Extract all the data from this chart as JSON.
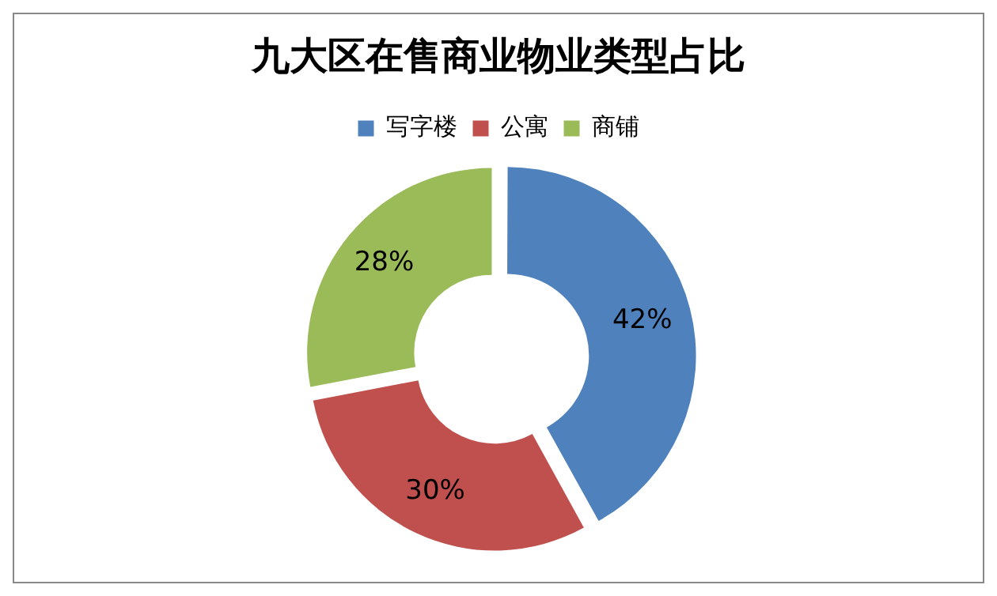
{
  "chart_data": {
    "type": "donut",
    "title": "九大区在售商业物业类型占比",
    "categories": [
      "写字楼",
      "公寓",
      "商铺"
    ],
    "values": [
      42,
      30,
      28
    ],
    "colors": [
      "#4f81bd",
      "#c0504d",
      "#9bbb59"
    ],
    "value_labels": [
      "42%",
      "30%",
      "28%"
    ],
    "legend": "top"
  }
}
